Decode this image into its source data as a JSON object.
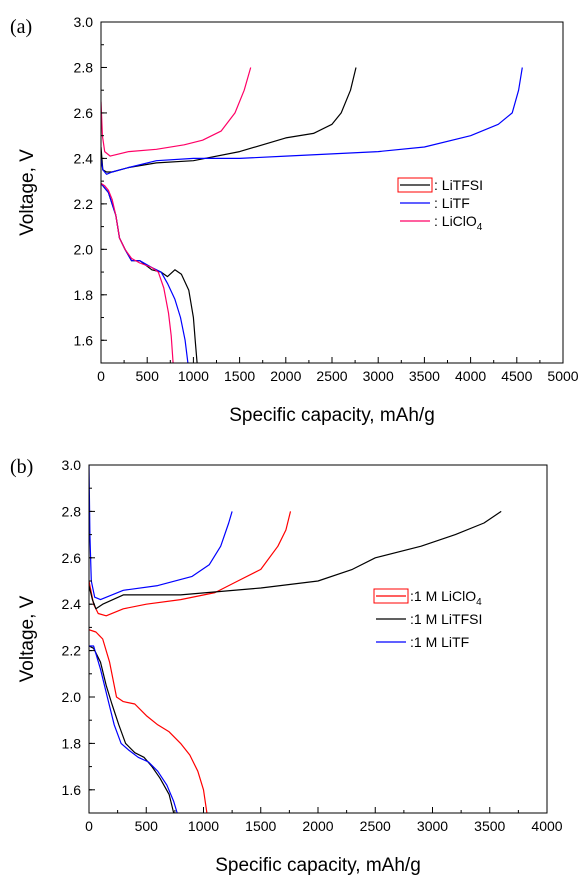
{
  "chart_data": [
    {
      "type": "line",
      "panel_label": "(a)",
      "xlabel": "Specific capacity, mAh/g",
      "ylabel": "Voltage, V",
      "xlim": [
        0,
        5000
      ],
      "ylim": [
        1.5,
        3.0
      ],
      "xticks": [
        0,
        500,
        1000,
        1500,
        2000,
        2500,
        3000,
        3500,
        4000,
        4500,
        5000
      ],
      "yticks": [
        1.6,
        1.8,
        2.0,
        2.2,
        2.4,
        2.6,
        2.8,
        3.0
      ],
      "legend_position": "right-middle",
      "series": [
        {
          "name": "LiTFSI",
          "legend_label": ": LiTFSI",
          "color": "#000000",
          "discharge": [
            [
              0,
              2.29
            ],
            [
              40,
              2.27
            ],
            [
              80,
              2.25
            ],
            [
              120,
              2.2
            ],
            [
              160,
              2.15
            ],
            [
              200,
              2.05
            ],
            [
              260,
              2.0
            ],
            [
              330,
              1.95
            ],
            [
              420,
              1.95
            ],
            [
              550,
              1.91
            ],
            [
              650,
              1.9
            ],
            [
              720,
              1.88
            ],
            [
              800,
              1.91
            ],
            [
              870,
              1.89
            ],
            [
              950,
              1.82
            ],
            [
              1000,
              1.7
            ],
            [
              1020,
              1.6
            ],
            [
              1040,
              1.5
            ]
          ],
          "charge": [
            [
              0,
              2.45
            ],
            [
              20,
              2.35
            ],
            [
              60,
              2.34
            ],
            [
              120,
              2.34
            ],
            [
              300,
              2.36
            ],
            [
              600,
              2.38
            ],
            [
              1000,
              2.39
            ],
            [
              1500,
              2.43
            ],
            [
              2000,
              2.49
            ],
            [
              2300,
              2.51
            ],
            [
              2500,
              2.55
            ],
            [
              2600,
              2.6
            ],
            [
              2700,
              2.7
            ],
            [
              2760,
              2.8
            ]
          ]
        },
        {
          "name": "LiTF",
          "legend_label": ": LiTF",
          "color": "#0000ff",
          "discharge": [
            [
              0,
              2.29
            ],
            [
              40,
              2.27
            ],
            [
              80,
              2.25
            ],
            [
              120,
              2.2
            ],
            [
              160,
              2.15
            ],
            [
              200,
              2.05
            ],
            [
              260,
              2.0
            ],
            [
              330,
              1.95
            ],
            [
              420,
              1.95
            ],
            [
              550,
              1.92
            ],
            [
              650,
              1.9
            ],
            [
              720,
              1.85
            ],
            [
              800,
              1.78
            ],
            [
              860,
              1.7
            ],
            [
              910,
              1.6
            ],
            [
              940,
              1.5
            ]
          ],
          "charge": [
            [
              0,
              2.4
            ],
            [
              20,
              2.35
            ],
            [
              60,
              2.33
            ],
            [
              120,
              2.34
            ],
            [
              300,
              2.36
            ],
            [
              600,
              2.39
            ],
            [
              1000,
              2.4
            ],
            [
              1500,
              2.4
            ],
            [
              2000,
              2.41
            ],
            [
              2500,
              2.42
            ],
            [
              3000,
              2.43
            ],
            [
              3500,
              2.45
            ],
            [
              4000,
              2.5
            ],
            [
              4300,
              2.55
            ],
            [
              4450,
              2.6
            ],
            [
              4520,
              2.7
            ],
            [
              4560,
              2.8
            ]
          ]
        },
        {
          "name": "LiClO4",
          "legend_label": ": LiClO",
          "legend_subscript": "4",
          "color": "#ff0066",
          "discharge": [
            [
              0,
              2.29
            ],
            [
              40,
              2.28
            ],
            [
              80,
              2.26
            ],
            [
              120,
              2.22
            ],
            [
              160,
              2.15
            ],
            [
              200,
              2.05
            ],
            [
              260,
              2.0
            ],
            [
              330,
              1.96
            ],
            [
              420,
              1.94
            ],
            [
              550,
              1.92
            ],
            [
              620,
              1.9
            ],
            [
              680,
              1.83
            ],
            [
              730,
              1.72
            ],
            [
              760,
              1.62
            ],
            [
              780,
              1.5
            ]
          ],
          "charge": [
            [
              0,
              2.65
            ],
            [
              15,
              2.5
            ],
            [
              40,
              2.43
            ],
            [
              100,
              2.41
            ],
            [
              300,
              2.43
            ],
            [
              600,
              2.44
            ],
            [
              900,
              2.46
            ],
            [
              1100,
              2.48
            ],
            [
              1300,
              2.52
            ],
            [
              1450,
              2.6
            ],
            [
              1550,
              2.7
            ],
            [
              1620,
              2.8
            ]
          ]
        }
      ]
    },
    {
      "type": "line",
      "panel_label": "(b)",
      "xlabel": "Specific capacity, mAh/g",
      "ylabel": "Voltage, V",
      "xlim": [
        0,
        4000
      ],
      "ylim": [
        1.5,
        3.0
      ],
      "xticks": [
        0,
        500,
        1000,
        1500,
        2000,
        2500,
        3000,
        3500,
        4000
      ],
      "yticks": [
        1.6,
        1.8,
        2.0,
        2.2,
        2.4,
        2.6,
        2.8,
        3.0
      ],
      "legend_position": "right-middle",
      "series": [
        {
          "name": "1 M LiClO4",
          "legend_label": ":1 M LiClO",
          "legend_subscript": "4",
          "color": "#ff0000",
          "discharge": [
            [
              0,
              2.29
            ],
            [
              60,
              2.28
            ],
            [
              120,
              2.25
            ],
            [
              180,
              2.15
            ],
            [
              240,
              2.0
            ],
            [
              300,
              1.98
            ],
            [
              400,
              1.97
            ],
            [
              500,
              1.92
            ],
            [
              600,
              1.88
            ],
            [
              700,
              1.85
            ],
            [
              800,
              1.8
            ],
            [
              880,
              1.75
            ],
            [
              950,
              1.68
            ],
            [
              1000,
              1.6
            ],
            [
              1030,
              1.5
            ]
          ],
          "charge": [
            [
              0,
              2.5
            ],
            [
              40,
              2.4
            ],
            [
              80,
              2.36
            ],
            [
              150,
              2.35
            ],
            [
              300,
              2.38
            ],
            [
              500,
              2.4
            ],
            [
              800,
              2.42
            ],
            [
              1100,
              2.45
            ],
            [
              1300,
              2.5
            ],
            [
              1500,
              2.55
            ],
            [
              1650,
              2.65
            ],
            [
              1720,
              2.72
            ],
            [
              1760,
              2.8
            ]
          ]
        },
        {
          "name": "1 M LiTFSI",
          "legend_label": ":1 M LiTFSI",
          "color": "#000000",
          "discharge": [
            [
              0,
              2.22
            ],
            [
              40,
              2.21
            ],
            [
              100,
              2.15
            ],
            [
              150,
              2.05
            ],
            [
              200,
              1.97
            ],
            [
              260,
              1.88
            ],
            [
              320,
              1.8
            ],
            [
              400,
              1.76
            ],
            [
              480,
              1.74
            ],
            [
              550,
              1.7
            ],
            [
              620,
              1.65
            ],
            [
              700,
              1.58
            ],
            [
              740,
              1.5
            ]
          ],
          "charge": [
            [
              0,
              2.48
            ],
            [
              30,
              2.42
            ],
            [
              60,
              2.38
            ],
            [
              120,
              2.4
            ],
            [
              300,
              2.44
            ],
            [
              800,
              2.44
            ],
            [
              1500,
              2.47
            ],
            [
              2000,
              2.5
            ],
            [
              2300,
              2.55
            ],
            [
              2500,
              2.6
            ],
            [
              2900,
              2.65
            ],
            [
              3200,
              2.7
            ],
            [
              3450,
              2.75
            ],
            [
              3600,
              2.8
            ]
          ]
        },
        {
          "name": "1 M LiTF",
          "legend_label": ":1 M LiTF",
          "color": "#0000ff",
          "discharge": [
            [
              0,
              2.22
            ],
            [
              40,
              2.22
            ],
            [
              100,
              2.12
            ],
            [
              160,
              2.0
            ],
            [
              220,
              1.88
            ],
            [
              280,
              1.8
            ],
            [
              350,
              1.77
            ],
            [
              430,
              1.74
            ],
            [
              520,
              1.72
            ],
            [
              600,
              1.68
            ],
            [
              680,
              1.62
            ],
            [
              740,
              1.55
            ],
            [
              770,
              1.5
            ]
          ],
          "charge": [
            [
              0,
              3.0
            ],
            [
              8,
              2.7
            ],
            [
              20,
              2.5
            ],
            [
              50,
              2.43
            ],
            [
              100,
              2.42
            ],
            [
              300,
              2.46
            ],
            [
              600,
              2.48
            ],
            [
              900,
              2.52
            ],
            [
              1050,
              2.57
            ],
            [
              1150,
              2.65
            ],
            [
              1220,
              2.75
            ],
            [
              1250,
              2.8
            ]
          ]
        }
      ]
    }
  ]
}
